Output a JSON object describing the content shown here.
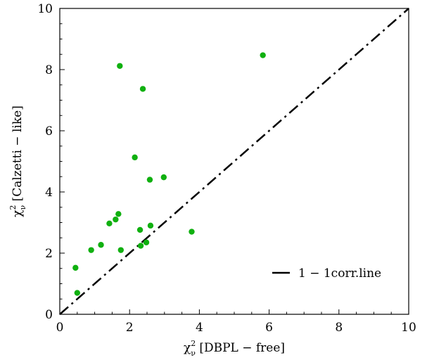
{
  "chart_data": {
    "type": "scatter",
    "xlabel": {
      "symbol": "χ",
      "sup": "2",
      "sub": "ν",
      "text": " [DBPL − free]"
    },
    "ylabel": {
      "symbol": "χ",
      "sup": "2",
      "sub": "ν",
      "text": " [Calzetti − like]"
    },
    "xlim": [
      0,
      10
    ],
    "ylim": [
      0,
      10
    ],
    "xticks": [
      "0",
      "2",
      "4",
      "6",
      "8",
      "10"
    ],
    "yticks": [
      "0",
      "2",
      "4",
      "6",
      "8",
      "10"
    ],
    "grid": false,
    "legend_position": "lower-right",
    "series": [
      {
        "kind": "scatter",
        "color": "#10b010",
        "x": [
          0.45,
          0.5,
          0.9,
          1.18,
          1.42,
          1.6,
          1.68,
          1.72,
          1.75,
          2.15,
          2.3,
          2.32,
          2.38,
          2.48,
          2.58,
          2.6,
          2.98,
          3.78,
          5.82
        ],
        "y": [
          1.52,
          0.7,
          2.1,
          2.27,
          2.97,
          3.1,
          3.28,
          8.12,
          2.1,
          5.13,
          2.76,
          2.24,
          7.37,
          2.35,
          4.4,
          2.9,
          4.48,
          2.7,
          8.47
        ]
      },
      {
        "kind": "line",
        "name": "1 − 1corr.line",
        "color": "#000000",
        "dash": "dashdot",
        "x": [
          0,
          10
        ],
        "y": [
          0,
          10
        ]
      }
    ]
  }
}
